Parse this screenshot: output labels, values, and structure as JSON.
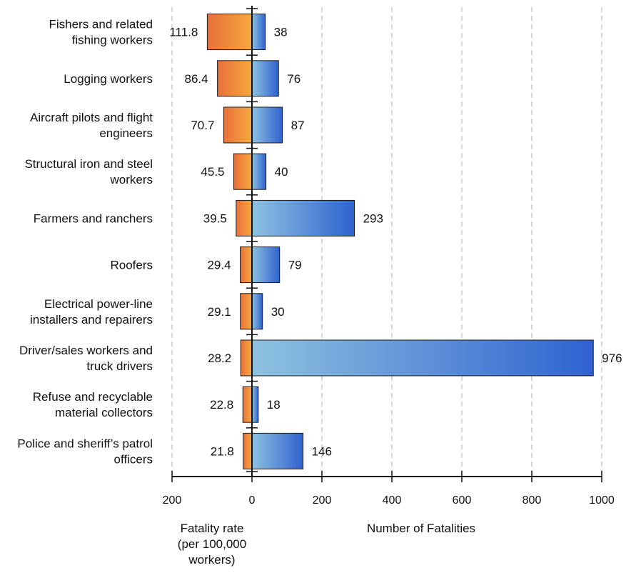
{
  "chart_data": {
    "type": "bar",
    "orientation": "horizontal-diverging",
    "categories": [
      [
        "Fishers and related",
        "fishing workers"
      ],
      [
        "Logging workers"
      ],
      [
        "Aircraft pilots and flight",
        "engineers"
      ],
      [
        "Structural iron and steel",
        "workers"
      ],
      [
        "Farmers and ranchers"
      ],
      [
        "Roofers"
      ],
      [
        "Electrical power-line",
        "installers and repairers"
      ],
      [
        "Driver/sales workers and",
        "truck drivers"
      ],
      [
        "Refuse and recyclable",
        "material collectors"
      ],
      [
        "Police and sheriff’s patrol",
        "officers"
      ]
    ],
    "series": [
      {
        "values": [
          111.8,
          86.4,
          70.7,
          45.5,
          39.5,
          29.4,
          29.1,
          28.2,
          22.8,
          21.8
        ],
        "labels": [
          "111.8",
          "86.4",
          "70.7",
          "45.5",
          "39.5",
          "29.4",
          "29.1",
          "28.2",
          "22.8",
          "21.8"
        ],
        "color_light": "#f7a93e",
        "color_dark": "#e8703a",
        "side": "left"
      },
      {
        "values": [
          38,
          76,
          87,
          40,
          293,
          79,
          30,
          976,
          18,
          146
        ],
        "labels": [
          "38",
          "76",
          "87",
          "40",
          "293",
          "79",
          "30",
          "976",
          "18",
          "146"
        ],
        "color_light": "#8ec2e0",
        "color_dark": "#2f62cf",
        "side": "right"
      }
    ],
    "left_axis": {
      "ticks": [
        "200",
        "0"
      ],
      "title_lines": [
        "Fatality rate",
        "(per 100,000",
        "workers)"
      ],
      "range": [
        0,
        200
      ]
    },
    "right_axis": {
      "ticks": [
        "0",
        "200",
        "400",
        "600",
        "800",
        "1000"
      ],
      "title": "Number of Fatalities",
      "range": [
        0,
        1000
      ]
    },
    "grid": true,
    "legend": "none"
  }
}
